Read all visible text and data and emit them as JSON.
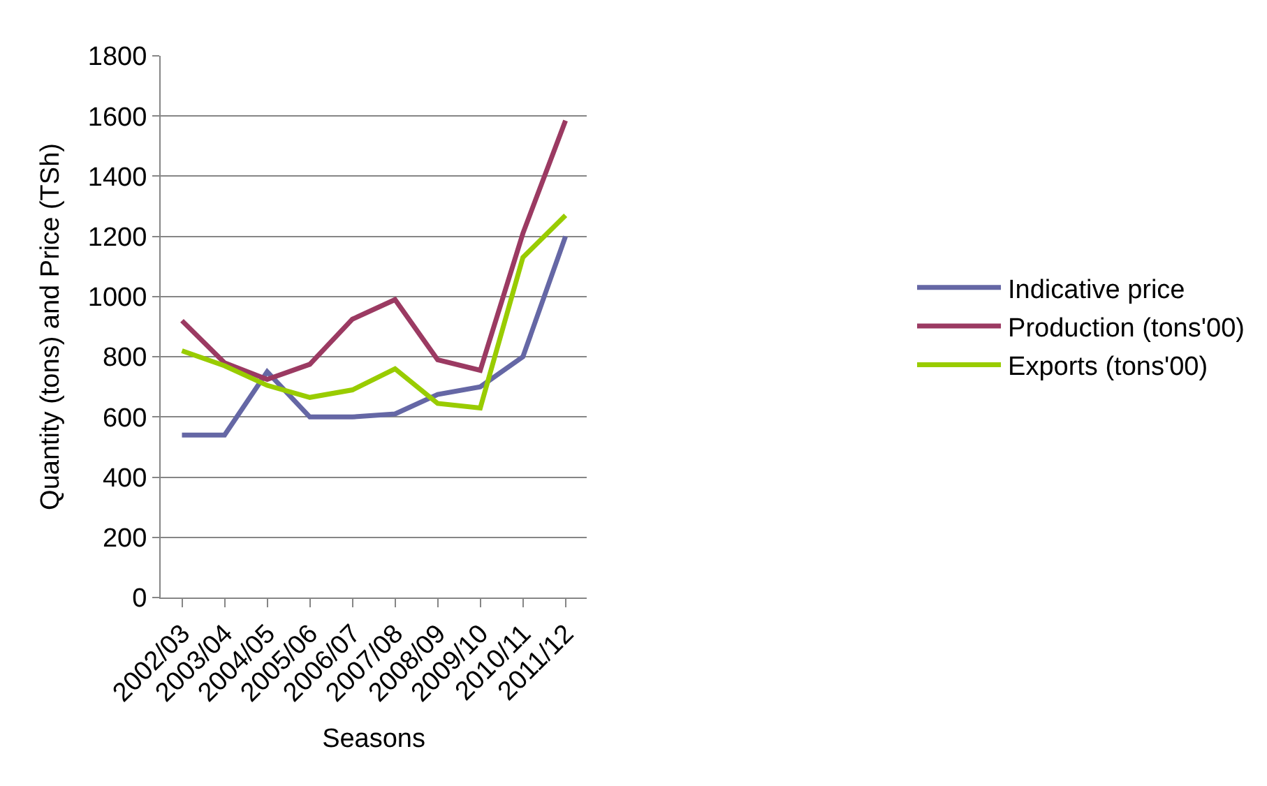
{
  "chart_data": {
    "type": "line",
    "xlabel": "Seasons",
    "ylabel": "Quantity (tons) and Price (TSh)",
    "categories": [
      "2002/03",
      "2003/04",
      "2004/05",
      "2005/06",
      "2006/07",
      "2007/08",
      "2008/09",
      "2009/10",
      "2010/11",
      "2011/12"
    ],
    "series": [
      {
        "name": "Indicative price",
        "color": "#6567a5",
        "values": [
          540,
          540,
          750,
          600,
          600,
          610,
          675,
          700,
          800,
          1200
        ]
      },
      {
        "name": "Production (tons'00)",
        "color": "#9b3a62",
        "values": [
          920,
          780,
          725,
          775,
          925,
          990,
          790,
          755,
          1210,
          1585
        ]
      },
      {
        "name": "Exports (tons'00)",
        "color": "#99cc00",
        "values": [
          820,
          770,
          705,
          665,
          690,
          760,
          645,
          630,
          1130,
          1270
        ]
      }
    ],
    "ylim": [
      0,
      1800
    ],
    "yticks": [
      0,
      200,
      400,
      600,
      800,
      1000,
      1200,
      1400,
      1600,
      1800
    ],
    "grid": "y",
    "legend": "right",
    "marker": "none",
    "line_style": "solid"
  }
}
